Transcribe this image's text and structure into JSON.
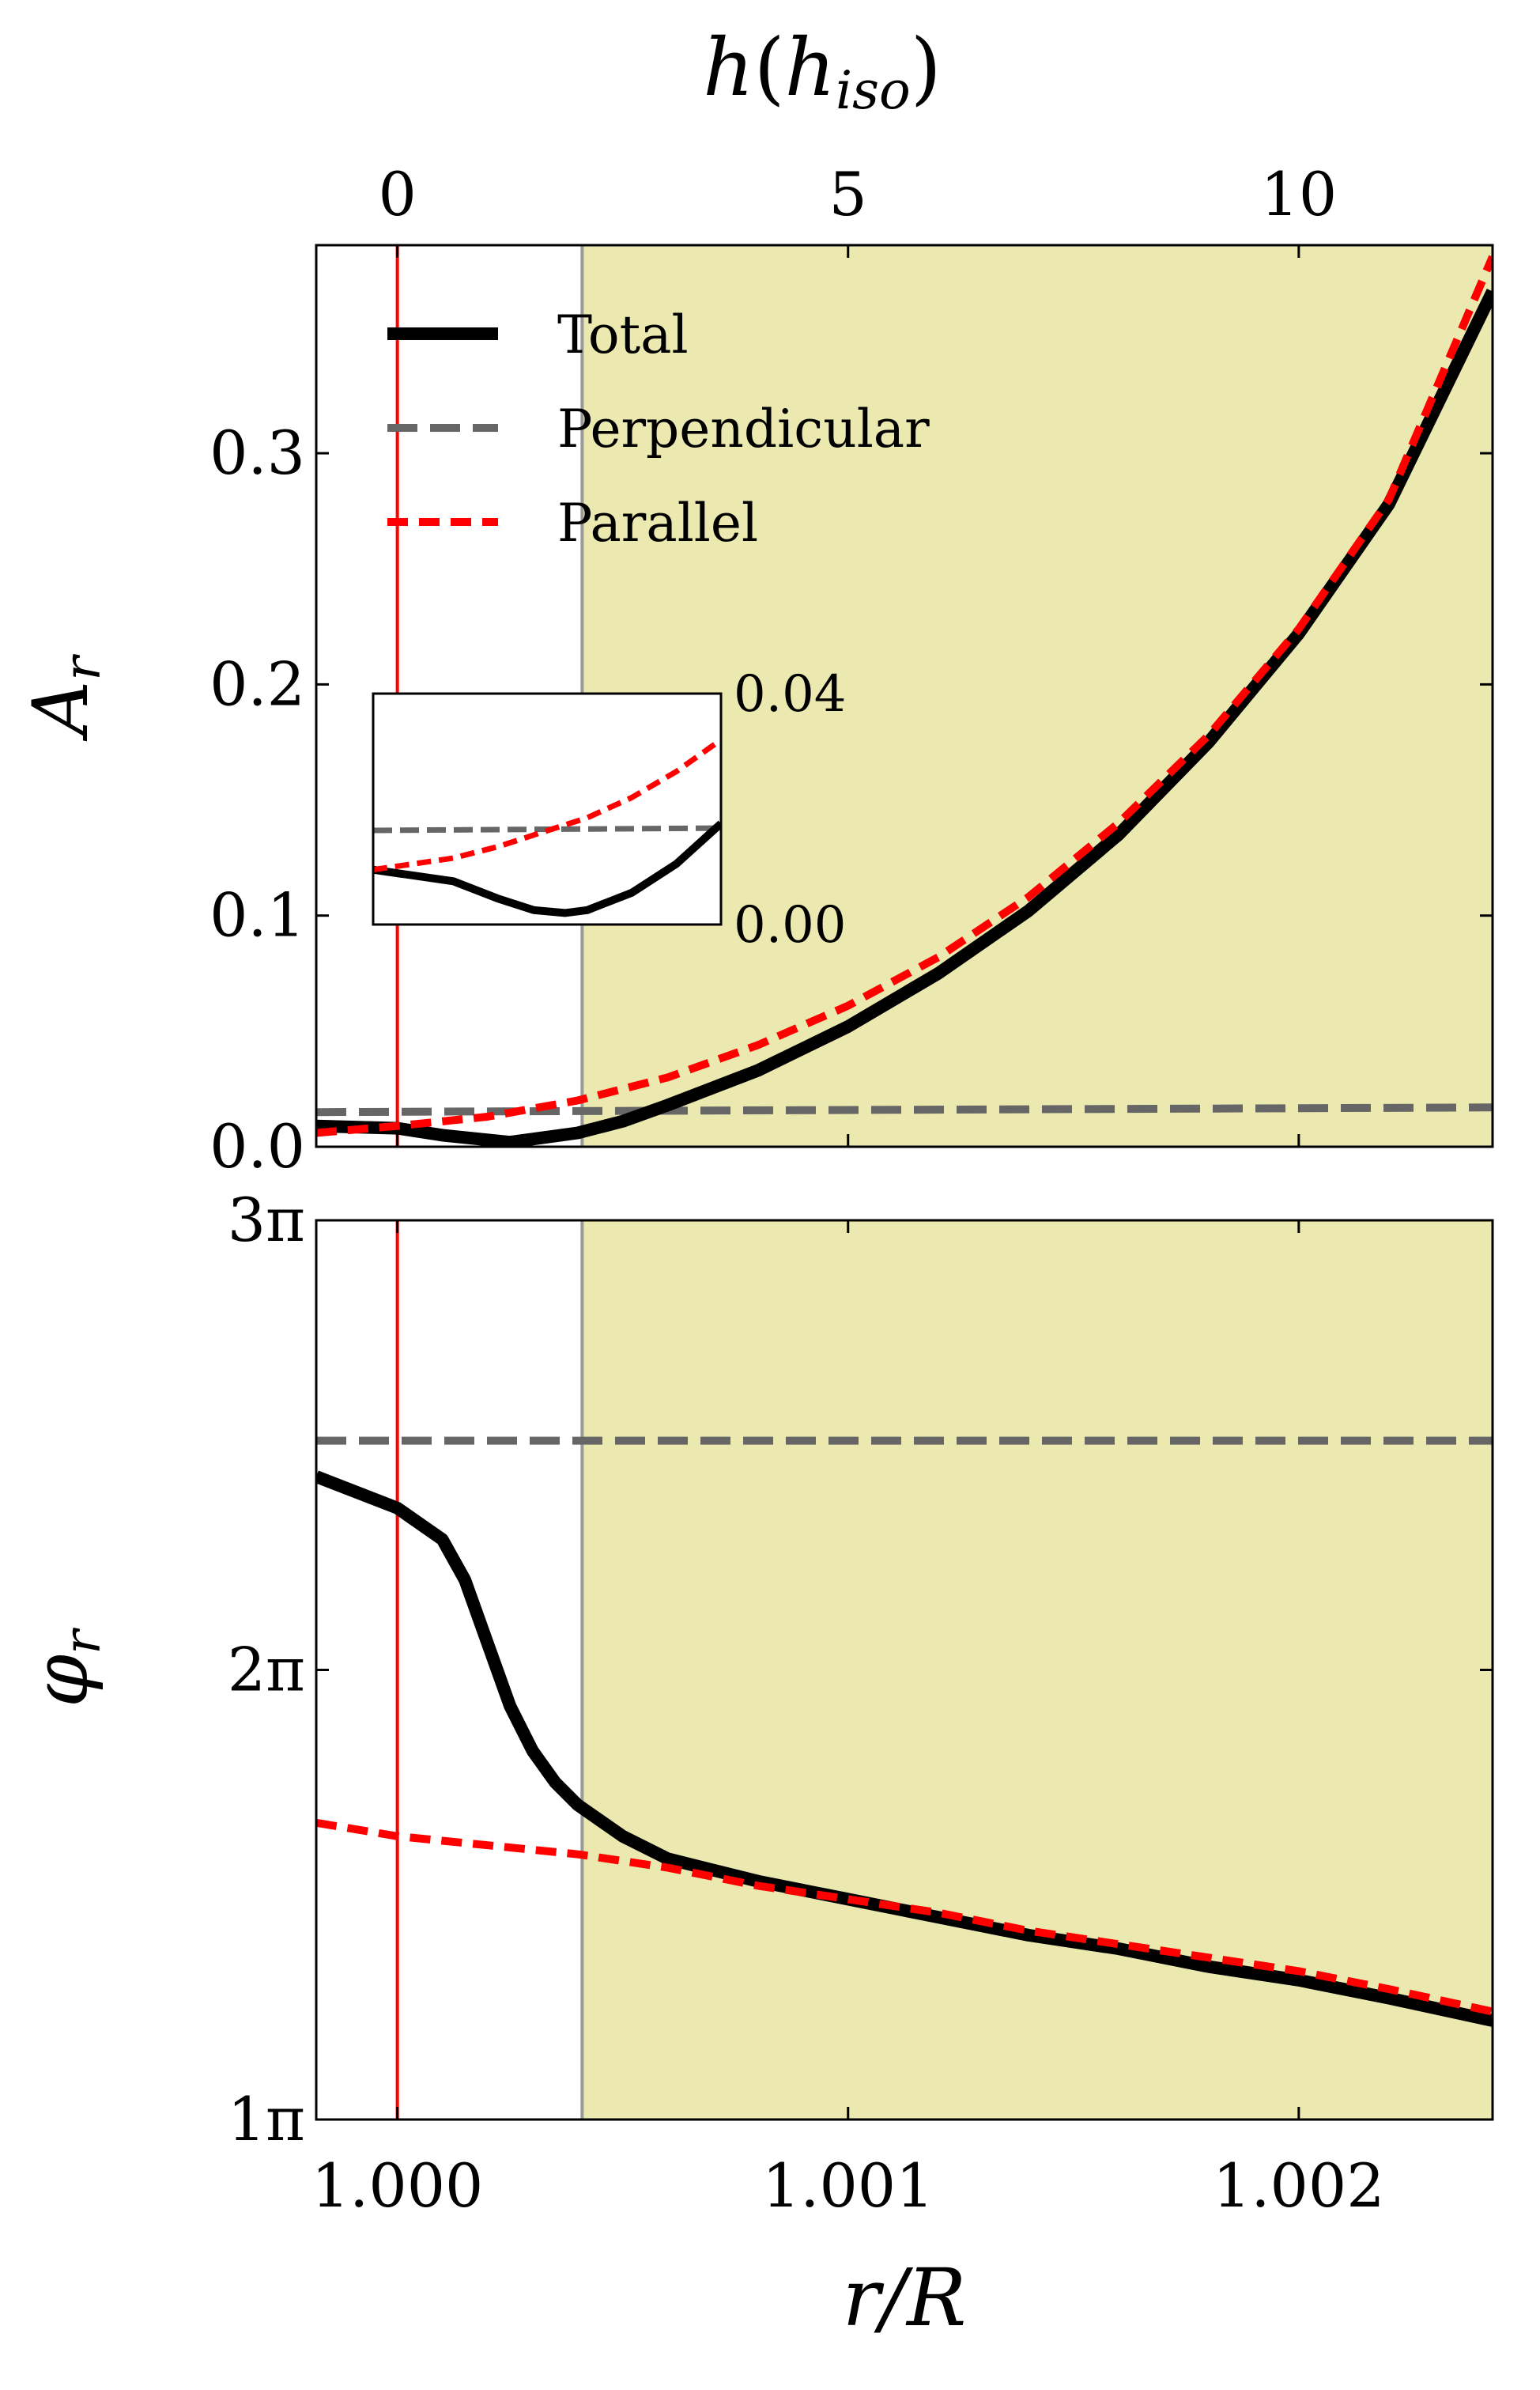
{
  "chart_data": [
    {
      "type": "line",
      "panel": "amplitude",
      "ylabel_base": "A",
      "ylabel_sub": "r",
      "xlim": [
        0.99982,
        1.00243
      ],
      "ylim": [
        0.0,
        0.39
      ],
      "yticks": [
        0.0,
        0.1,
        0.2,
        0.3
      ],
      "ytick_labels": [
        "0.0",
        "0.1",
        "0.2",
        "0.3"
      ],
      "top_axis": {
        "label_base": "h",
        "label_open": "(",
        "label_inner": "h",
        "label_sub": "iso",
        "label_close": ")",
        "ticks": [
          {
            "r": 1.0,
            "label": "0"
          },
          {
            "r": 1.001,
            "label": "5"
          },
          {
            "r": 1.002,
            "label": "10"
          }
        ]
      },
      "legend": {
        "position": "top-left",
        "entries": [
          "Total",
          "Perpendicular",
          "Parallel"
        ]
      },
      "series": [
        {
          "name": "Total",
          "color": "#000000",
          "style": "solid",
          "x": [
            0.99982,
            1.0,
            1.0001,
            1.00025,
            1.0004,
            1.0005,
            1.0006,
            1.0008,
            1.001,
            1.0012,
            1.0014,
            1.0016,
            1.0018,
            1.002,
            1.0022,
            1.00243
          ],
          "y": [
            0.009,
            0.008,
            0.005,
            0.002,
            0.006,
            0.011,
            0.018,
            0.033,
            0.052,
            0.075,
            0.102,
            0.135,
            0.175,
            0.222,
            0.278,
            0.37
          ]
        },
        {
          "name": "Perpendicular",
          "color": "#666666",
          "style": "dashed",
          "x": [
            0.99982,
            1.00243
          ],
          "y": [
            0.015,
            0.017
          ]
        },
        {
          "name": "Parallel",
          "color": "#ff0000",
          "style": "dashed",
          "x": [
            0.99982,
            1.0,
            1.0002,
            1.0004,
            1.0006,
            1.0008,
            1.001,
            1.0012,
            1.0014,
            1.0016,
            1.0018,
            1.002,
            1.0022,
            1.00243
          ],
          "y": [
            0.006,
            0.009,
            0.013,
            0.02,
            0.03,
            0.044,
            0.061,
            0.082,
            0.108,
            0.14,
            0.178,
            0.224,
            0.28,
            0.385
          ]
        }
      ],
      "shaded_region": {
        "x_start": 1.00041,
        "x_end": 1.00243,
        "color": "#ebe9b0"
      },
      "vertical_lines": [
        {
          "x": 1.0,
          "color": "#ff0000"
        },
        {
          "x": 1.00041,
          "color": "#999999"
        }
      ],
      "inset": {
        "xlim": [
          0.99982,
          1.0006
        ],
        "ylim": [
          0.0,
          0.04
        ],
        "yticks": [
          0.0,
          0.04
        ],
        "ytick_labels": [
          "0.00",
          "0.04"
        ],
        "series": [
          {
            "name": "Total",
            "x": [
              0.99982,
              1.0,
              1.0001,
              1.00018,
              1.00025,
              1.0003,
              1.0004,
              1.0005,
              1.0006
            ],
            "y": [
              0.0095,
              0.0075,
              0.0045,
              0.0025,
              0.002,
              0.0025,
              0.0055,
              0.0105,
              0.0175
            ]
          },
          {
            "name": "Perpendicular",
            "x": [
              0.99982,
              1.0006
            ],
            "y": [
              0.0163,
              0.0167
            ]
          },
          {
            "name": "Parallel",
            "x": [
              0.99982,
              1.0,
              1.0001,
              1.0002,
              1.0003,
              1.0004,
              1.0005,
              1.0006
            ],
            "y": [
              0.0095,
              0.0115,
              0.0135,
              0.016,
              0.0185,
              0.022,
              0.0265,
              0.032
            ]
          }
        ]
      }
    },
    {
      "type": "line",
      "panel": "phase",
      "ylabel_base": "φ",
      "ylabel_sub": "r",
      "xlabel": "r/R",
      "xlim": [
        0.99982,
        1.00243
      ],
      "ylim": [
        1.0,
        3.0
      ],
      "ylim_unit": "π",
      "yticks": [
        1.0,
        2.0,
        3.0
      ],
      "ytick_labels": [
        "1π",
        "2π",
        "3π"
      ],
      "xticks": [
        1.0,
        1.001,
        1.002
      ],
      "xtick_labels": [
        "1.000",
        "1.001",
        "1.002"
      ],
      "series": [
        {
          "name": "Total",
          "color": "#000000",
          "style": "solid",
          "x": [
            0.99982,
            1.0,
            1.0001,
            1.00015,
            1.0002,
            1.00025,
            1.0003,
            1.00035,
            1.0004,
            1.0005,
            1.0006,
            1.0008,
            1.001,
            1.0012,
            1.0014,
            1.0016,
            1.0018,
            1.002,
            1.0022,
            1.00243
          ],
          "y": [
            2.43,
            2.36,
            2.29,
            2.2,
            2.06,
            1.92,
            1.82,
            1.75,
            1.7,
            1.63,
            1.58,
            1.53,
            1.49,
            1.45,
            1.41,
            1.38,
            1.34,
            1.31,
            1.27,
            1.22
          ]
        },
        {
          "name": "Perpendicular",
          "color": "#666666",
          "style": "dashed",
          "x": [
            0.99982,
            1.00243
          ],
          "y": [
            2.51,
            2.51
          ]
        },
        {
          "name": "Parallel",
          "color": "#ff0000",
          "style": "dashed",
          "x": [
            0.99982,
            1.0,
            1.0002,
            1.0004,
            1.0006,
            1.0008,
            1.001,
            1.0012,
            1.0014,
            1.0016,
            1.0018,
            1.002,
            1.0022,
            1.00243
          ],
          "y": [
            1.66,
            1.63,
            1.61,
            1.59,
            1.56,
            1.52,
            1.49,
            1.46,
            1.42,
            1.39,
            1.36,
            1.33,
            1.29,
            1.24
          ]
        }
      ],
      "shaded_region": {
        "x_start": 1.00041,
        "x_end": 1.00243,
        "color": "#ebe9b0"
      },
      "vertical_lines": [
        {
          "x": 1.0,
          "color": "#ff0000"
        },
        {
          "x": 1.00041,
          "color": "#999999"
        }
      ]
    }
  ]
}
